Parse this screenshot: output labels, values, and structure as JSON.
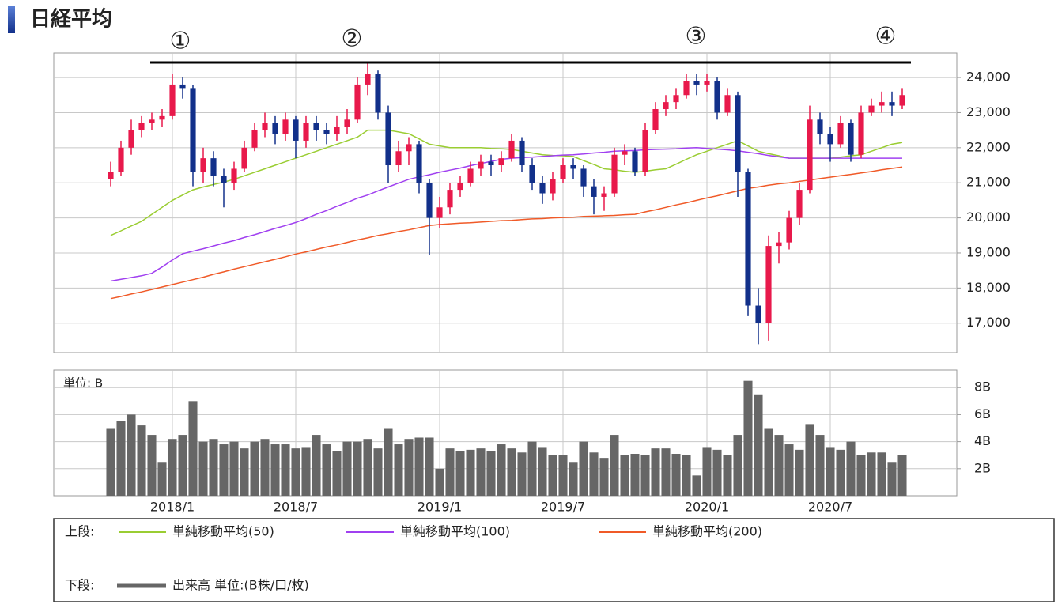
{
  "chart_data": {
    "type": "candlestick",
    "title": "日経平均",
    "annotations": [
      "①",
      "②",
      "③",
      "④"
    ],
    "categories": [
      null,
      null,
      null,
      null,
      null,
      null,
      "2018/1",
      null,
      null,
      null,
      null,
      null,
      null,
      null,
      null,
      null,
      null,
      null,
      "2018/7",
      null,
      null,
      null,
      null,
      null,
      null,
      null,
      null,
      null,
      null,
      null,
      null,
      null,
      "2019/1",
      null,
      null,
      null,
      null,
      null,
      null,
      null,
      null,
      null,
      null,
      null,
      "2019/7",
      null,
      null,
      null,
      null,
      null,
      null,
      null,
      null,
      null,
      null,
      null,
      null,
      null,
      "2020/1",
      null,
      null,
      null,
      null,
      null,
      null,
      null,
      null,
      null,
      null,
      null,
      "2020/7",
      null,
      null,
      null,
      null,
      null,
      null,
      null
    ],
    "open": [
      21100,
      21300,
      22000,
      22500,
      22700,
      22800,
      22900,
      23800,
      23700,
      21300,
      21700,
      21200,
      21000,
      21400,
      22000,
      22500,
      22700,
      22400,
      22800,
      22200,
      22700,
      22500,
      22400,
      22600,
      22800,
      23800,
      24100,
      23000,
      21500,
      21900,
      22100,
      21000,
      20000,
      20300,
      20800,
      21000,
      21400,
      21600,
      21500,
      21700,
      22200,
      21500,
      21000,
      20700,
      21100,
      21500,
      21400,
      20900,
      20600,
      20700,
      21800,
      21900,
      21300,
      22500,
      23100,
      23300,
      23500,
      23900,
      23800,
      23900,
      23000,
      23500,
      21300,
      17500,
      17000,
      19200,
      19300,
      20000,
      20800,
      22800,
      22400,
      22100,
      22700,
      21800,
      23000,
      23200,
      23300,
      23200
    ],
    "high": [
      21600,
      22200,
      22800,
      22900,
      23000,
      23100,
      24100,
      24000,
      23800,
      22000,
      21900,
      21400,
      21600,
      22200,
      22700,
      23000,
      22900,
      23000,
      22900,
      22900,
      22900,
      22700,
      22900,
      23100,
      24000,
      24400,
      24200,
      23200,
      22200,
      22300,
      22200,
      21100,
      20600,
      21000,
      21200,
      21600,
      21800,
      21800,
      21900,
      22400,
      22300,
      21700,
      21200,
      21300,
      21700,
      21700,
      21500,
      21100,
      20900,
      22000,
      22100,
      22000,
      22700,
      23300,
      23500,
      23700,
      24100,
      24100,
      24100,
      24000,
      23700,
      23600,
      21400,
      18000,
      19500,
      19600,
      20200,
      21000,
      23200,
      23000,
      22600,
      22900,
      22800,
      23200,
      23400,
      23600,
      23600,
      23700
    ],
    "low": [
      20900,
      21200,
      21800,
      22300,
      22500,
      22600,
      22800,
      23400,
      20900,
      21000,
      20900,
      20300,
      20800,
      21300,
      21900,
      22300,
      22100,
      22200,
      21700,
      22000,
      22200,
      22100,
      22200,
      22400,
      22700,
      23500,
      22800,
      21000,
      21300,
      21500,
      20700,
      18950,
      19700,
      20100,
      20600,
      20900,
      21200,
      21200,
      21300,
      21600,
      21300,
      20800,
      20400,
      20500,
      21000,
      21100,
      20600,
      20100,
      20200,
      20600,
      21500,
      21200,
      21200,
      22400,
      22900,
      23100,
      23400,
      23500,
      23600,
      22800,
      22900,
      20600,
      17200,
      16400,
      16500,
      18700,
      19100,
      19800,
      20700,
      22100,
      21600,
      22000,
      21600,
      21700,
      22900,
      23000,
      22900,
      23100
    ],
    "close": [
      21300,
      22000,
      22500,
      22700,
      22800,
      22900,
      23800,
      23700,
      21300,
      21700,
      21200,
      21000,
      21400,
      22000,
      22500,
      22700,
      22400,
      22800,
      22200,
      22700,
      22500,
      22400,
      22600,
      22800,
      23800,
      24100,
      23000,
      21500,
      21900,
      22100,
      21000,
      20000,
      20300,
      20800,
      21000,
      21400,
      21600,
      21500,
      21700,
      22200,
      21500,
      21000,
      20700,
      21100,
      21500,
      21400,
      20900,
      20600,
      20700,
      21800,
      21900,
      21300,
      22500,
      23100,
      23300,
      23500,
      23900,
      23800,
      23900,
      23000,
      23500,
      21300,
      17500,
      17000,
      19200,
      19300,
      20000,
      20800,
      22800,
      22400,
      22100,
      22700,
      21800,
      23000,
      23200,
      23300,
      23200,
      23500
    ],
    "up_color": "#e8194b",
    "down_color": "#12308a",
    "legend_upper": "上段:",
    "legend_lower": "下段:",
    "series": [
      {
        "name": "単純移動平均(50)",
        "color": "#9acd32",
        "values": [
          19500,
          19630,
          19770,
          19900,
          20100,
          20300,
          20500,
          20650,
          20800,
          20880,
          20950,
          21020,
          21100,
          21200,
          21300,
          21400,
          21500,
          21600,
          21700,
          21800,
          21900,
          22000,
          22100,
          22200,
          22300,
          22500,
          22500,
          22500,
          22450,
          22400,
          22250,
          22100,
          22050,
          22000,
          22000,
          22000,
          22000,
          21980,
          21970,
          21950,
          21900,
          21850,
          21800,
          21780,
          21770,
          21750,
          21630,
          21520,
          21400,
          21370,
          21330,
          21300,
          21330,
          21370,
          21400,
          21530,
          21670,
          21800,
          21900,
          22000,
          22100,
          22200,
          22050,
          21900,
          21830,
          21770,
          21700,
          21700,
          21700,
          21700,
          21700,
          21730,
          21770,
          21800,
          21900,
          22000,
          22100,
          22150
        ]
      },
      {
        "name": "単純移動平均(100)",
        "color": "#a040f0",
        "values": [
          18200,
          18250,
          18300,
          18350,
          18420,
          18600,
          18800,
          18980,
          19050,
          19120,
          19200,
          19280,
          19350,
          19440,
          19520,
          19610,
          19700,
          19780,
          19870,
          19980,
          20100,
          20210,
          20330,
          20440,
          20560,
          20650,
          20770,
          20880,
          20990,
          21100,
          21170,
          21230,
          21300,
          21360,
          21420,
          21490,
          21550,
          21610,
          21670,
          21700,
          21720,
          21730,
          21750,
          21770,
          21790,
          21800,
          21820,
          21850,
          21870,
          21900,
          21910,
          21920,
          21940,
          21950,
          21960,
          21970,
          21990,
          22000,
          21980,
          21960,
          21940,
          21910,
          21870,
          21830,
          21780,
          21740,
          21700,
          21700,
          21700,
          21700,
          21700,
          21700,
          21700,
          21700,
          21700,
          21700,
          21700,
          21700
        ]
      },
      {
        "name": "単純移動平均(200)",
        "color": "#f05a28",
        "values": [
          17700,
          17760,
          17830,
          17890,
          17960,
          18030,
          18100,
          18170,
          18240,
          18310,
          18390,
          18460,
          18540,
          18610,
          18680,
          18750,
          18820,
          18890,
          18970,
          19030,
          19100,
          19170,
          19230,
          19300,
          19370,
          19430,
          19500,
          19550,
          19610,
          19660,
          19720,
          19780,
          19810,
          19830,
          19850,
          19860,
          19880,
          19900,
          19920,
          19930,
          19950,
          19970,
          19980,
          20000,
          20010,
          20020,
          20040,
          20050,
          20060,
          20070,
          20090,
          20100,
          20170,
          20230,
          20300,
          20370,
          20430,
          20500,
          20570,
          20630,
          20700,
          20770,
          20840,
          20880,
          20930,
          20970,
          21000,
          21040,
          21080,
          21120,
          21160,
          21200,
          21240,
          21280,
          21320,
          21370,
          21410,
          21450
        ]
      }
    ],
    "ylim": [
      16160,
      24700
    ],
    "yticks": [
      {
        "value": 17000,
        "label": "17,000"
      },
      {
        "value": 18000,
        "label": "18,000"
      },
      {
        "value": 19000,
        "label": "19,000"
      },
      {
        "value": 20000,
        "label": "20,000"
      },
      {
        "value": 21000,
        "label": "21,000"
      },
      {
        "value": 22000,
        "label": "22,000"
      },
      {
        "value": 23000,
        "label": "23,000"
      },
      {
        "value": 24000,
        "label": "24,000"
      }
    ],
    "grid": true,
    "volume": {
      "type": "bar",
      "name": "出来高 単位:(B株/口/枚)",
      "unit_label": "単位: B",
      "color": "#666666",
      "values": [
        5.0,
        5.5,
        6.0,
        5.2,
        4.5,
        2.5,
        4.2,
        4.5,
        7.0,
        4.0,
        4.2,
        3.8,
        4.0,
        3.5,
        4.0,
        4.2,
        3.8,
        3.8,
        3.5,
        3.6,
        4.5,
        3.8,
        3.3,
        4.0,
        4.0,
        4.2,
        3.5,
        5.0,
        3.8,
        4.2,
        4.3,
        4.3,
        2.0,
        3.5,
        3.3,
        3.4,
        3.5,
        3.3,
        3.8,
        3.5,
        3.2,
        4.0,
        3.6,
        3.0,
        3.0,
        2.5,
        4.0,
        3.2,
        2.8,
        4.5,
        3.0,
        3.1,
        3.0,
        3.5,
        3.5,
        3.1,
        3.0,
        1.5,
        3.6,
        3.4,
        3.0,
        4.5,
        8.5,
        7.5,
        5.0,
        4.5,
        3.8,
        3.4,
        5.3,
        4.5,
        3.6,
        3.4,
        4.0,
        3.0,
        3.2,
        3.2,
        2.5,
        3.0
      ],
      "ylim": [
        0,
        9.3
      ],
      "yticks": [
        {
          "value": 2,
          "label": "2B"
        },
        {
          "value": 4,
          "label": "4B"
        },
        {
          "value": 6,
          "label": "6B"
        },
        {
          "value": 8,
          "label": "8B"
        }
      ]
    }
  }
}
